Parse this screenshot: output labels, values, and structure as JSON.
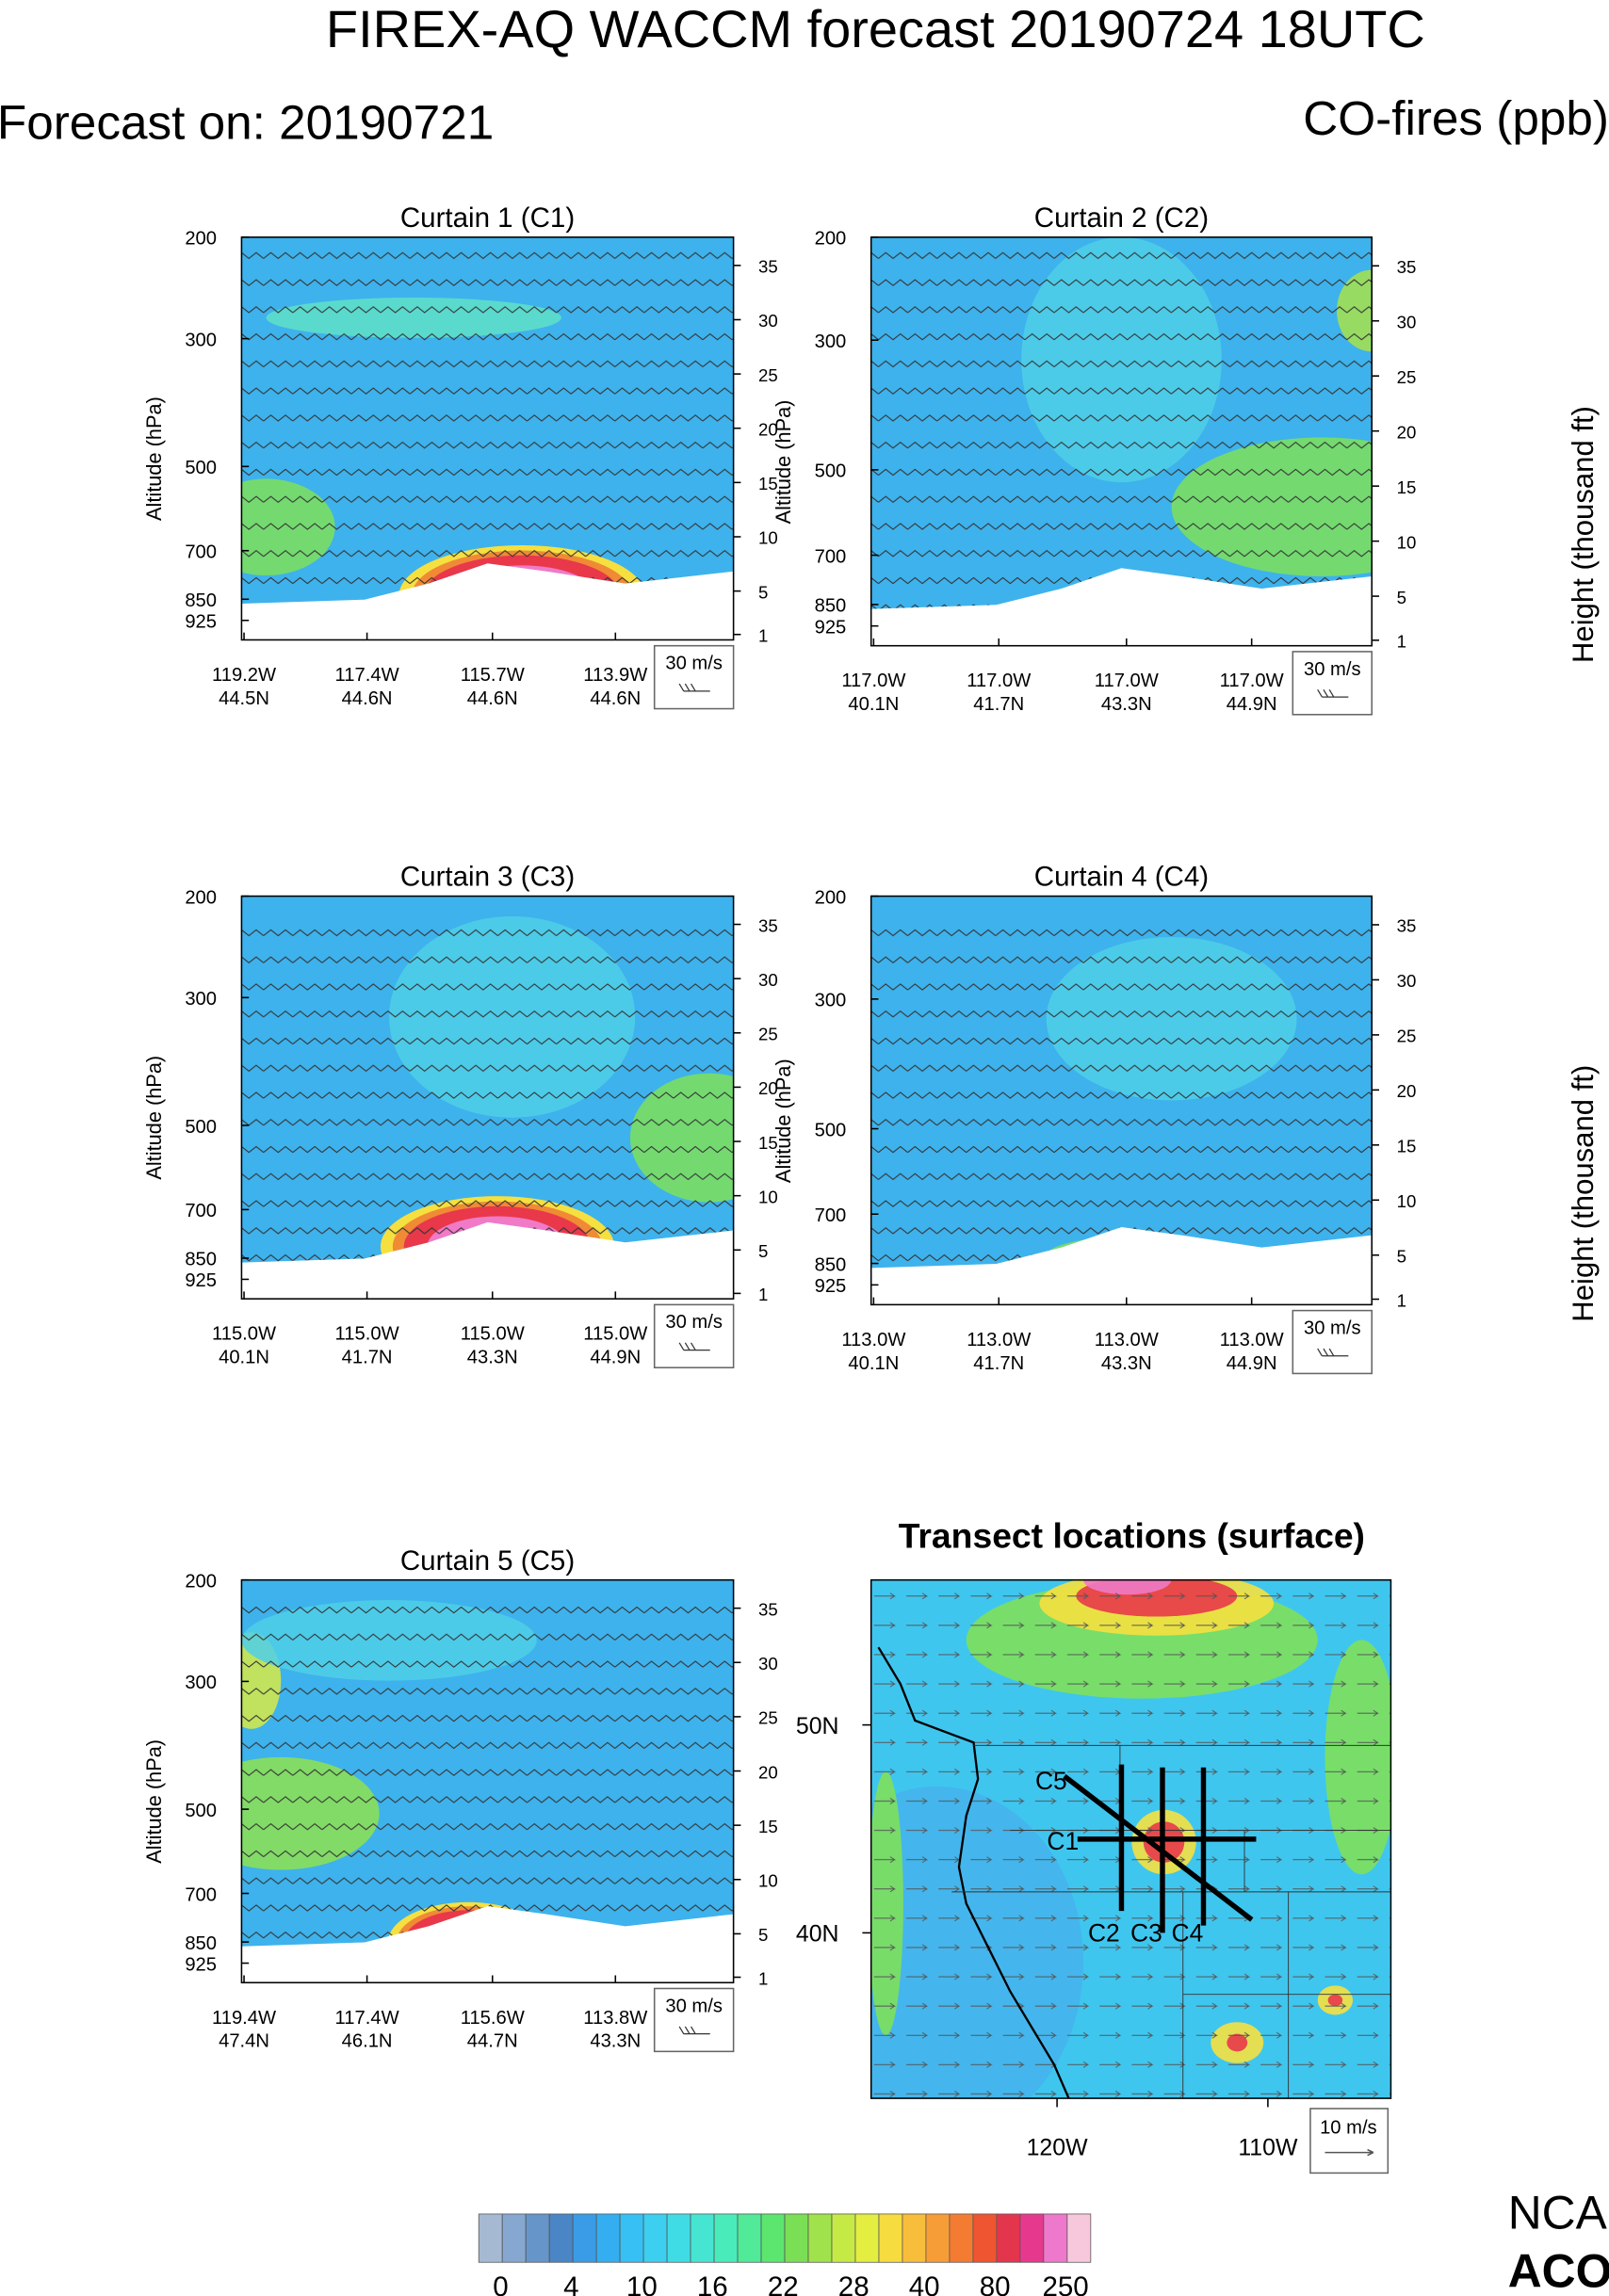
{
  "header": {
    "title": "FIREX-AQ WACCM forecast 20190724 18UTC",
    "forecast_on": "Forecast on: 20190721",
    "variable": "CO-fires (ppb)"
  },
  "pressure_axis": {
    "label": "Altitude (hPa)",
    "ticks": [
      200,
      300,
      500,
      700,
      850,
      925
    ],
    "lim": [
      200,
      1000
    ],
    "log": true
  },
  "height_axis": {
    "label": "Height (thousand ft)",
    "ticks": [
      35,
      30,
      25,
      20,
      15,
      10,
      5,
      1
    ],
    "lim": [
      37.6,
      0.5
    ]
  },
  "wind_legend": "30 m/s",
  "curtains": [
    {
      "title": "Curtain 1 (C1)",
      "x_labels": [
        {
          "lon": "119.2W",
          "lat": "44.5N"
        },
        {
          "lon": "117.4W",
          "lat": "44.6N"
        },
        {
          "lon": "115.7W",
          "lat": "44.6N"
        },
        {
          "lon": "113.9W",
          "lat": "44.6N"
        }
      ]
    },
    {
      "title": "Curtain 2 (C2)",
      "x_labels": [
        {
          "lon": "117.0W",
          "lat": "40.1N"
        },
        {
          "lon": "117.0W",
          "lat": "41.7N"
        },
        {
          "lon": "117.0W",
          "lat": "43.3N"
        },
        {
          "lon": "117.0W",
          "lat": "44.9N"
        }
      ]
    },
    {
      "title": "Curtain 3 (C3)",
      "x_labels": [
        {
          "lon": "115.0W",
          "lat": "40.1N"
        },
        {
          "lon": "115.0W",
          "lat": "41.7N"
        },
        {
          "lon": "115.0W",
          "lat": "43.3N"
        },
        {
          "lon": "115.0W",
          "lat": "44.9N"
        }
      ]
    },
    {
      "title": "Curtain 4 (C4)",
      "x_labels": [
        {
          "lon": "113.0W",
          "lat": "40.1N"
        },
        {
          "lon": "113.0W",
          "lat": "41.7N"
        },
        {
          "lon": "113.0W",
          "lat": "43.3N"
        },
        {
          "lon": "113.0W",
          "lat": "44.9N"
        }
      ]
    },
    {
      "title": "Curtain 5 (C5)",
      "x_labels": [
        {
          "lon": "119.4W",
          "lat": "47.4N"
        },
        {
          "lon": "117.4W",
          "lat": "46.1N"
        },
        {
          "lon": "115.6W",
          "lat": "44.7N"
        },
        {
          "lon": "113.8W",
          "lat": "43.3N"
        }
      ]
    }
  ],
  "map": {
    "title": "Transect locations (surface)",
    "lat_labels": [
      "50N",
      "40N"
    ],
    "lon_labels": [
      "120W",
      "110W"
    ],
    "transects": [
      "C1",
      "C2",
      "C3",
      "C4",
      "C5"
    ],
    "legend": "10 m/s"
  },
  "colorbar": {
    "ticks": [
      0,
      4,
      10,
      16,
      22,
      28,
      40,
      80,
      250
    ],
    "colors": [
      "#a5b9d2",
      "#86a7cf",
      "#6695c9",
      "#4a85c5",
      "#3a9ce6",
      "#34aef0",
      "#37c0f4",
      "#3ccff0",
      "#40dce6",
      "#46e5d2",
      "#4aebbb",
      "#50ea98",
      "#5ce66f",
      "#7adf55",
      "#a0e24b",
      "#c6ea45",
      "#e4ee40",
      "#f6dc3f",
      "#f8bd3b",
      "#f79d37",
      "#f47b32",
      "#ee5530",
      "#e3364d",
      "#e6398e",
      "#ee78cc",
      "#f7c8dc"
    ]
  },
  "logo": [
    "NCA",
    "ACO"
  ]
}
